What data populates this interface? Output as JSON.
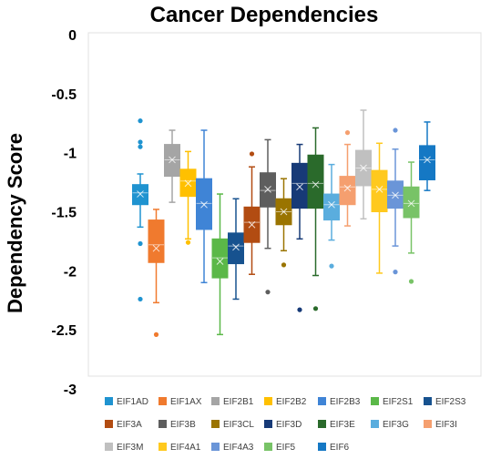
{
  "chart_data": {
    "type": "box",
    "title": "Cancer Dependencies",
    "ylabel": "Dependency Score",
    "xlabel": "",
    "ylim": [
      -3,
      0
    ],
    "yticks": [
      0,
      -0.5,
      -1,
      -1.5,
      -2,
      -2.5,
      -3
    ],
    "ytick_labels": [
      "0",
      "-0.5",
      "-1",
      "-1.5",
      "-2",
      "-2.5",
      "-3"
    ],
    "grid": false,
    "legend_position": "bottom",
    "series": [
      {
        "name": "EIF1AD",
        "color": "#1f93d0",
        "min": -1.63,
        "q1": -1.44,
        "median": -1.34,
        "q3": -1.27,
        "max": -1.18,
        "mean": -1.35,
        "outliers": [
          -0.73,
          -0.91,
          -0.95,
          -1.77,
          -2.24
        ]
      },
      {
        "name": "EIF1AX",
        "color": "#f07a2e",
        "min": -2.27,
        "q1": -1.93,
        "median": -1.78,
        "q3": -1.57,
        "max": -1.48,
        "mean": -1.81,
        "outliers": [
          -2.54
        ]
      },
      {
        "name": "EIF2B1",
        "color": "#a5a5a5",
        "min": -1.42,
        "q1": -1.2,
        "median": -1.06,
        "q3": -0.93,
        "max": -0.81,
        "mean": -1.06,
        "outliers": []
      },
      {
        "name": "EIF2B2",
        "color": "#ffc000",
        "min": -1.73,
        "q1": -1.37,
        "median": -1.24,
        "q3": -1.14,
        "max": -0.99,
        "mean": -1.26,
        "outliers": [
          -1.76
        ]
      },
      {
        "name": "EIF2B3",
        "color": "#3f84d6",
        "min": -2.1,
        "q1": -1.65,
        "median": -1.43,
        "q3": -1.22,
        "max": -0.81,
        "mean": -1.44,
        "outliers": []
      },
      {
        "name": "EIF2S1",
        "color": "#5bb848",
        "min": -2.54,
        "q1": -2.06,
        "median": -1.89,
        "q3": -1.73,
        "max": -1.35,
        "mean": -1.92,
        "outliers": []
      },
      {
        "name": "EIF2S3",
        "color": "#17528f",
        "min": -2.24,
        "q1": -1.94,
        "median": -1.79,
        "q3": -1.68,
        "max": -1.39,
        "mean": -1.8,
        "outliers": []
      },
      {
        "name": "EIF3A",
        "color": "#b24c12",
        "min": -2.03,
        "q1": -1.76,
        "median": -1.59,
        "q3": -1.46,
        "max": -1.12,
        "mean": -1.61,
        "outliers": [
          -1.01
        ]
      },
      {
        "name": "EIF3B",
        "color": "#5e5e5e",
        "min": -1.81,
        "q1": -1.46,
        "median": -1.32,
        "q3": -1.17,
        "max": -0.89,
        "mean": -1.31,
        "outliers": [
          -2.18
        ]
      },
      {
        "name": "EIF3CL",
        "color": "#9a7400",
        "min": -1.83,
        "q1": -1.61,
        "median": -1.5,
        "q3": -1.39,
        "max": -1.22,
        "mean": -1.5,
        "outliers": [
          -1.95
        ]
      },
      {
        "name": "EIF3D",
        "color": "#173a77",
        "min": -1.73,
        "q1": -1.47,
        "median": -1.26,
        "q3": -1.09,
        "max": -0.93,
        "mean": -1.29,
        "outliers": [
          -2.33
        ]
      },
      {
        "name": "EIF3E",
        "color": "#2a6a2b",
        "min": -2.04,
        "q1": -1.47,
        "median": -1.26,
        "q3": -1.02,
        "max": -0.79,
        "mean": -1.27,
        "outliers": [
          -2.32
        ]
      },
      {
        "name": "EIF3G",
        "color": "#5aadde",
        "min": -1.74,
        "q1": -1.57,
        "median": -1.44,
        "q3": -1.35,
        "max": -1.1,
        "mean": -1.44,
        "outliers": [
          -1.96
        ]
      },
      {
        "name": "EIF3I",
        "color": "#f59f6f",
        "min": -1.62,
        "q1": -1.44,
        "median": -1.29,
        "q3": -1.2,
        "max": -0.93,
        "mean": -1.3,
        "outliers": [
          -0.83
        ]
      },
      {
        "name": "EIF3M",
        "color": "#c0c0c0",
        "min": -1.56,
        "q1": -1.28,
        "median": -1.13,
        "q3": -0.98,
        "max": -0.64,
        "mean": -1.13,
        "outliers": []
      },
      {
        "name": "EIF4A1",
        "color": "#ffc91e",
        "min": -2.02,
        "q1": -1.5,
        "median": -1.31,
        "q3": -1.15,
        "max": -0.92,
        "mean": -1.31,
        "outliers": []
      },
      {
        "name": "EIF4A3",
        "color": "#6a95d8",
        "min": -1.79,
        "q1": -1.47,
        "median": -1.36,
        "q3": -1.24,
        "max": -0.97,
        "mean": -1.36,
        "outliers": [
          -0.81,
          -2.01
        ]
      },
      {
        "name": "EIF5",
        "color": "#78c367",
        "min": -1.85,
        "q1": -1.55,
        "median": -1.43,
        "q3": -1.29,
        "max": -1.08,
        "mean": -1.43,
        "outliers": [
          -2.09
        ]
      },
      {
        "name": "EIF6",
        "color": "#1578c4",
        "min": -1.32,
        "q1": -1.23,
        "median": -1.06,
        "q3": -0.94,
        "max": -0.74,
        "mean": -1.06,
        "outliers": []
      }
    ]
  }
}
